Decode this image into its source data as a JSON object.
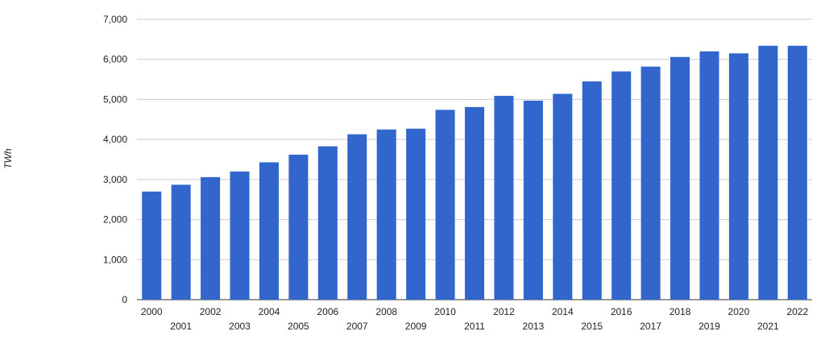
{
  "chart_data": {
    "type": "bar",
    "title": "",
    "xlabel": "",
    "ylabel": "TWh",
    "ylim": [
      0,
      7000
    ],
    "yticks": [
      0,
      1000,
      2000,
      3000,
      4000,
      5000,
      6000,
      7000
    ],
    "ytick_labels": [
      "0",
      "1,000",
      "2,000",
      "3,000",
      "4,000",
      "5,000",
      "6,000",
      "7,000"
    ],
    "grid": true,
    "legend": "none",
    "bar_color": "#3366cc",
    "grid_color": "#cccccc",
    "categories": [
      "2000",
      "2001",
      "2002",
      "2003",
      "2004",
      "2005",
      "2006",
      "2007",
      "2008",
      "2009",
      "2010",
      "2011",
      "2012",
      "2013",
      "2014",
      "2015",
      "2016",
      "2017",
      "2018",
      "2019",
      "2020",
      "2021",
      "2022"
    ],
    "values": [
      2700,
      2870,
      3060,
      3200,
      3430,
      3620,
      3830,
      4130,
      4250,
      4270,
      4740,
      4810,
      5090,
      4970,
      5140,
      5450,
      5700,
      5820,
      6060,
      6200,
      6150,
      6340,
      6340
    ]
  }
}
